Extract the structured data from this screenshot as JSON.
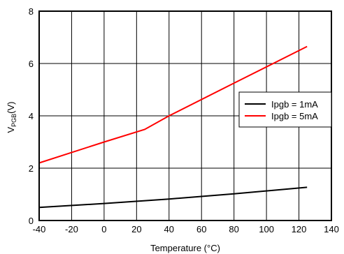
{
  "chart_data": {
    "type": "line",
    "xlabel": "Temperature (°C)",
    "ylabel": {
      "main": "V",
      "sub": "PGB",
      "unit": "(V)"
    },
    "xlim": [
      -40,
      140
    ],
    "ylim": [
      0,
      8
    ],
    "x_ticks": [
      -40,
      -20,
      0,
      20,
      40,
      60,
      80,
      100,
      120,
      140
    ],
    "y_ticks": [
      0,
      2,
      4,
      6,
      8
    ],
    "grid": true,
    "legend_position": "right",
    "series": [
      {
        "name": "Ipgb = 1mA",
        "color": "#000000",
        "x": [
          -40,
          0,
          40,
          80,
          125
        ],
        "y": [
          0.5,
          0.65,
          0.82,
          1.02,
          1.27
        ]
      },
      {
        "name": "Ipgb = 5mA",
        "color": "#ff0000",
        "x": [
          -40,
          0,
          25,
          40,
          80,
          125
        ],
        "y": [
          2.2,
          3.0,
          3.48,
          4.0,
          5.25,
          6.65
        ]
      }
    ]
  }
}
